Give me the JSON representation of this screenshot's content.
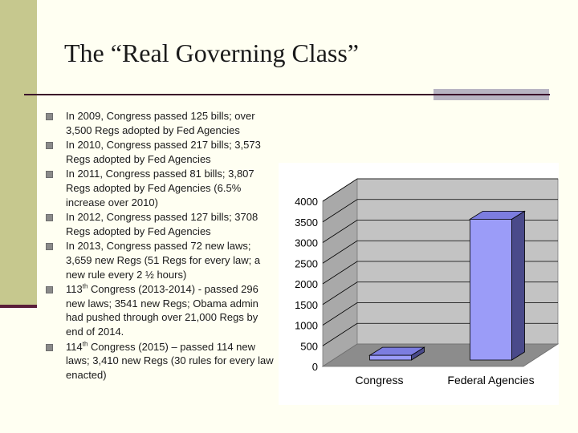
{
  "slide": {
    "title": "The “Real Governing Class”",
    "bullets": [
      {
        "pre": "In 2009, Congress passed 125 bills; over 3,500 Regs adopted by Fed Agencies"
      },
      {
        "pre": "In 2010, Congress passed 217 bills; 3,573 Regs adopted by Fed Agencies"
      },
      {
        "pre": "In 2011, Congress passed 81 bills; 3,807 Regs adopted by Fed Agencies (6.5% increase over 2010)"
      },
      {
        "pre": "In 2012, Congress passed 127 bills; 3708 Regs adopted by Fed Agencies"
      },
      {
        "pre": "In 2013, Congress passed 72 new laws; 3,659 new Regs (51 Regs for every law; a new rule every 2 ½ hours)"
      },
      {
        "pre": "113",
        "sup": "th",
        "post": " Congress (2013-2014) - passed 296 new laws; 3541 new Regs; Obama admin had pushed through over 21,000 Regs by end of 2014."
      },
      {
        "pre": "114",
        "sup": "th",
        "post": " Congress (2015) – passed 114 new laws; 3,410 new Regs (30 rules for every law enacted)"
      }
    ]
  },
  "chart_data": {
    "type": "bar",
    "categories": [
      "Congress",
      "Federal Agencies"
    ],
    "values": [
      114,
      3410
    ],
    "ylim": [
      0,
      4000
    ],
    "ytick_labels": [
      "0",
      "500",
      "1000",
      "1500",
      "2000",
      "2500",
      "3000",
      "3500",
      "4000"
    ],
    "grid": true,
    "legend": "none",
    "colors": {
      "bar_front": "#9b9cf8",
      "bar_side": "#4a4a8a",
      "bar_top": "#7c7de0",
      "back_wall": "#c3c3c3",
      "side_wall": "#a9a9a9",
      "floor": "#8c8c8c",
      "grid": "#000000"
    }
  }
}
